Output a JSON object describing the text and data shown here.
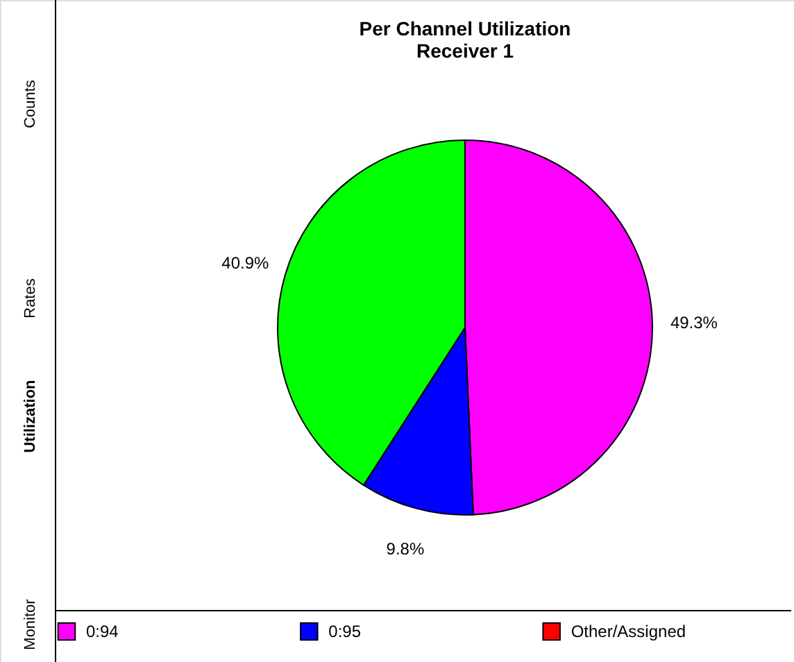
{
  "chart_data": {
    "type": "pie",
    "title": [
      "Per Channel Utilization",
      "Receiver 1"
    ],
    "categories": [
      "0:94",
      "0:95",
      null,
      "Other/Assigned"
    ],
    "values": [
      49.3,
      9.8,
      40.9,
      0
    ],
    "colors": [
      "#ff00ff",
      "#0000ff",
      "#00ff00",
      "#ff0000"
    ],
    "value_labels": [
      "49.3%",
      "9.8%",
      "40.9%",
      null
    ],
    "legend": "bottom",
    "annotations": [
      "Counts",
      "Rates",
      "Utilization",
      "Monitor"
    ]
  }
}
